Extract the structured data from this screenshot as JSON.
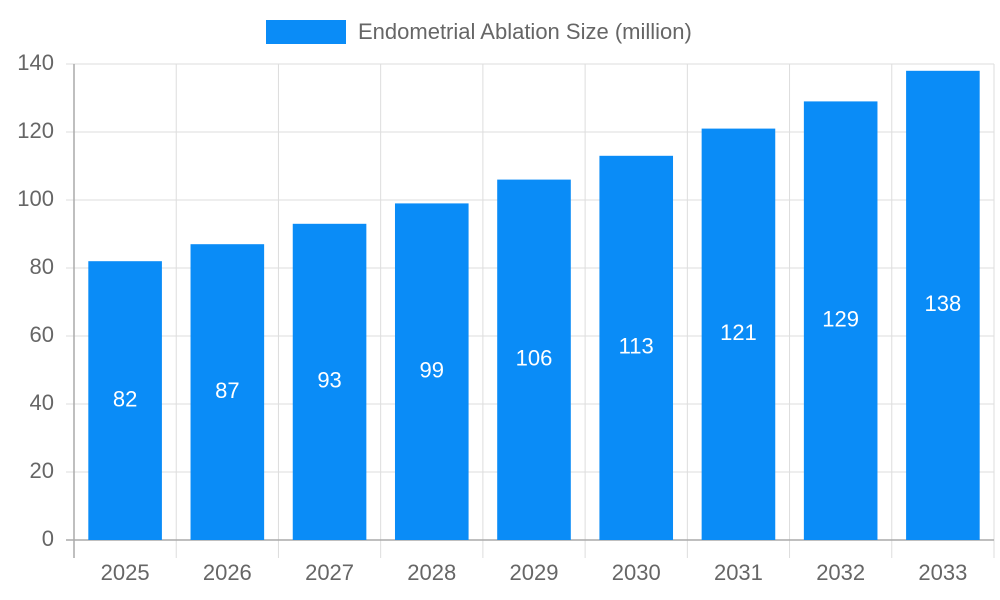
{
  "chart_data": {
    "type": "bar",
    "categories": [
      "2025",
      "2026",
      "2027",
      "2028",
      "2029",
      "2030",
      "2031",
      "2032",
      "2033"
    ],
    "series": [
      {
        "name": "Endometrial Ablation Size (million)",
        "color": "#0a8cf7",
        "values": [
          82,
          87,
          93,
          99,
          106,
          113,
          121,
          129,
          138
        ]
      }
    ],
    "ylim": [
      0,
      140
    ],
    "yticks": [
      0,
      20,
      40,
      60,
      80,
      100,
      120,
      140
    ],
    "grid": true,
    "legend": "top"
  }
}
